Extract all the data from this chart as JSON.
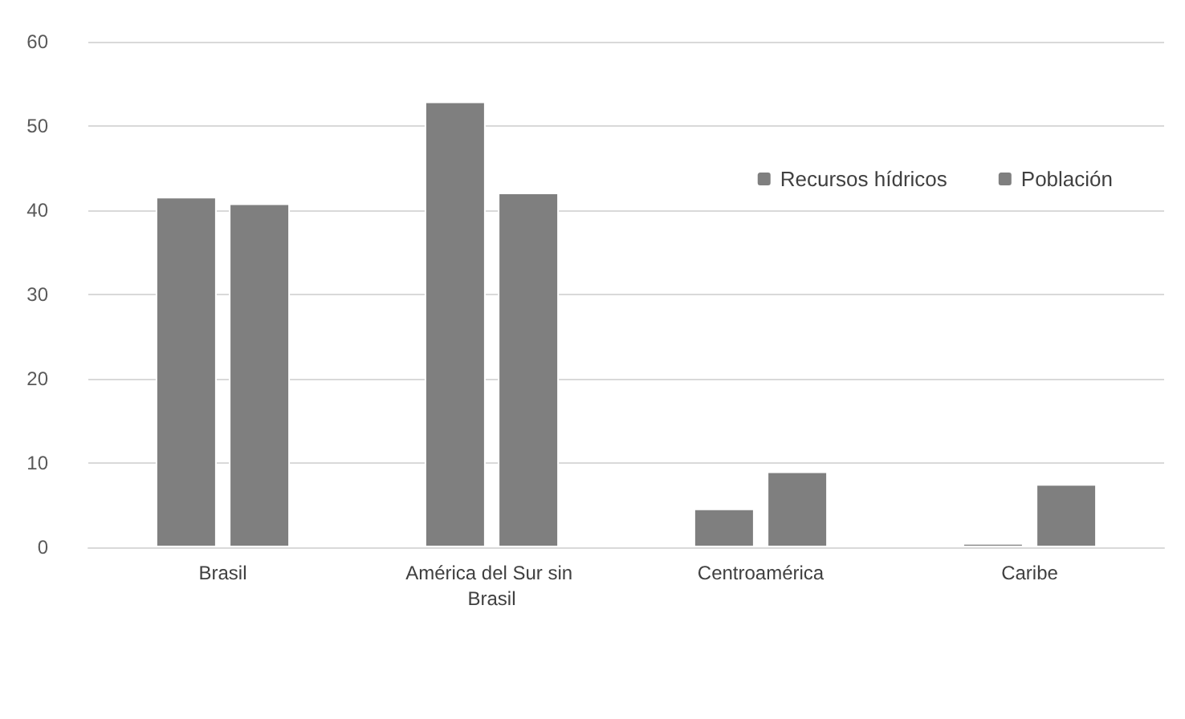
{
  "chart_data": {
    "type": "bar",
    "categories": [
      "Brasil",
      "América del Sur sin Brasil",
      "Centroamérica",
      "Caribe"
    ],
    "series": [
      {
        "name": "Recursos hídricos",
        "color": "#7f7f7f",
        "values": [
          41.6,
          52.9,
          4.6,
          0.5
        ]
      },
      {
        "name": "Población",
        "color": "#7f7f7f",
        "values": [
          40.8,
          42.1,
          9.0,
          7.5
        ]
      }
    ],
    "ylim": [
      0,
      60
    ],
    "yticks": [
      0,
      10,
      20,
      30,
      40,
      50,
      60
    ],
    "grid": "y",
    "legend": "top right"
  }
}
